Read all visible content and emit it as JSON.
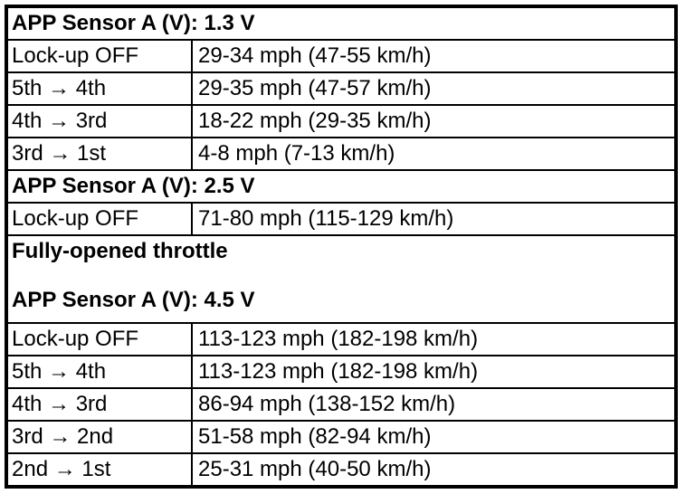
{
  "page": {
    "background_color": "#ffffff",
    "border_color": "#000000",
    "text_color": "#000000"
  },
  "table": {
    "sections": [
      {
        "header_lines": [
          "APP Sensor A (V): 1.3 V"
        ],
        "rows": [
          {
            "label": "Lock-up OFF",
            "value": "29-34 mph (47-55 km/h)"
          },
          {
            "label": "5th → 4th",
            "value": "29-35 mph (47-57 km/h)"
          },
          {
            "label": "4th → 3rd",
            "value": "18-22 mph (29-35 km/h)"
          },
          {
            "label": "3rd → 1st",
            "value": "4-8 mph (7-13 km/h)"
          }
        ]
      },
      {
        "header_lines": [
          "APP Sensor A (V): 2.5 V"
        ],
        "rows": [
          {
            "label": "Lock-up OFF",
            "value": "71-80 mph (115-129 km/h)"
          }
        ]
      },
      {
        "header_lines": [
          "Fully-opened throttle",
          "APP Sensor A (V): 4.5 V"
        ],
        "rows": [
          {
            "label": "Lock-up OFF",
            "value": "113-123 mph (182-198 km/h)"
          },
          {
            "label": "5th → 4th",
            "value": "113-123 mph (182-198 km/h)"
          },
          {
            "label": "4th → 3rd",
            "value": "86-94 mph (138-152 km/h)"
          },
          {
            "label": "3rd → 2nd",
            "value": "51-58 mph (82-94 km/h)"
          },
          {
            "label": "2nd → 1st",
            "value": "25-31 mph (40-50 km/h)"
          }
        ]
      }
    ]
  }
}
